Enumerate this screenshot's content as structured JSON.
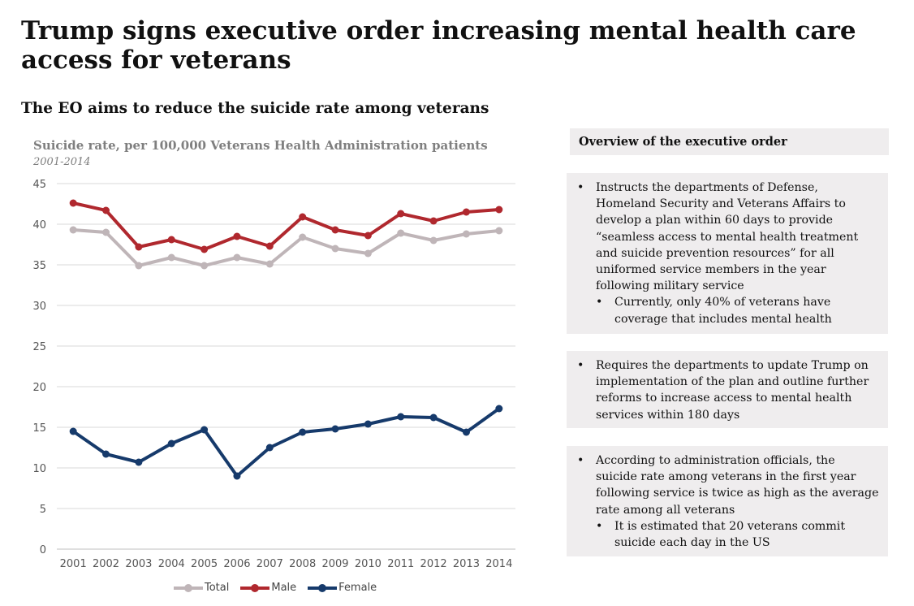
{
  "title": "Trump signs executive order increasing mental health care access for veterans",
  "subtitle": "The EO aims to reduce the suicide rate among veterans",
  "chart_data": {
    "type": "line",
    "title": "Suicide rate, per 100,000 Veterans Health Administration patients",
    "subtitle": "2001-2014",
    "xlabel": "",
    "ylabel": "",
    "ylim": [
      0,
      45
    ],
    "yticks": [
      "0",
      "5",
      "10",
      "15",
      "20",
      "25",
      "30",
      "35",
      "40",
      "45"
    ],
    "categories": [
      "2001",
      "2002",
      "2003",
      "2004",
      "2005",
      "2006",
      "2007",
      "2008",
      "2009",
      "2010",
      "2011",
      "2012",
      "2013",
      "2014"
    ],
    "series": [
      {
        "name": "Total",
        "color": "#bfb5b8",
        "values": [
          39.3,
          39.0,
          34.9,
          35.9,
          34.9,
          35.9,
          35.1,
          38.4,
          37.0,
          36.4,
          38.9,
          38.0,
          38.8,
          39.2
        ]
      },
      {
        "name": "Male",
        "color": "#b0282e",
        "values": [
          42.6,
          41.7,
          37.2,
          38.1,
          36.9,
          38.5,
          37.3,
          40.9,
          39.3,
          38.6,
          41.3,
          40.4,
          41.5,
          41.8
        ]
      },
      {
        "name": "Female",
        "color": "#163a6b",
        "values": [
          14.5,
          11.7,
          10.7,
          13.0,
          14.7,
          9.0,
          12.5,
          14.4,
          14.8,
          15.4,
          16.3,
          16.2,
          14.4,
          17.3
        ]
      }
    ],
    "grid": true,
    "legend_position": "bottom"
  },
  "overview": {
    "header": "Overview of the executive order",
    "boxes": [
      {
        "text": "Instructs the departments of Defense, Homeland Security and Veterans Affairs to develop a plan within 60 days to provide “seamless access to mental health treatment and suicide prevention resources” for all uniformed service members in the year following military service",
        "sub": "Currently, only 40% of veterans have coverage that includes mental health"
      },
      {
        "text": "Requires the departments to update Trump on implementation of the plan and outline further reforms to increase access to mental health services within 180 days",
        "sub": null
      },
      {
        "text": "According to administration officials, the suicide rate among veterans in the first year following service is twice as high as the average rate among all veterans",
        "sub": "It is estimated that 20 veterans commit suicide each day in the US"
      }
    ]
  }
}
